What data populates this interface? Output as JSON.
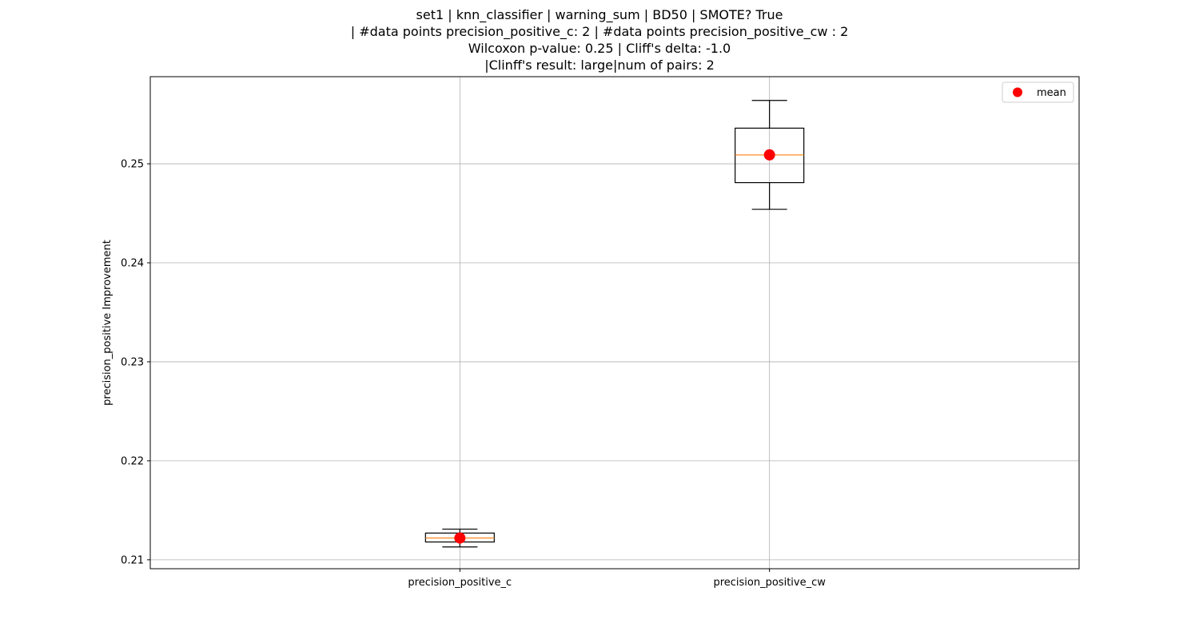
{
  "chart_data": {
    "type": "box",
    "title_lines": [
      "set1 | knn_classifier | warning_sum | BD50 | SMOTE? True",
      "| #data points precision_positive_c: 2 | #data points precision_positive_cw : 2",
      "Wilcoxon p-value: 0.25 | Cliff's delta: -1.0",
      "|Clinff's result: large|num of pairs: 2"
    ],
    "xlabel": "",
    "ylabel": "precision_positive Improvement",
    "ylim": [
      0.2091,
      0.2588
    ],
    "yticks": [
      0.21,
      0.22,
      0.23,
      0.24,
      0.25
    ],
    "ytick_labels": [
      "0.21",
      "0.22",
      "0.23",
      "0.24",
      "0.25"
    ],
    "categories": [
      "precision_positive_c",
      "precision_positive_cw"
    ],
    "boxes": [
      {
        "whisker_low": 0.2113,
        "q1": 0.2118,
        "median": 0.2122,
        "q3": 0.2127,
        "whisker_high": 0.2131,
        "mean": 0.2122
      },
      {
        "whisker_low": 0.2454,
        "q1": 0.2481,
        "median": 0.2509,
        "q3": 0.2536,
        "whisker_high": 0.2564,
        "mean": 0.2509
      }
    ],
    "grid": true,
    "legend": {
      "position": "top-right",
      "entries": [
        {
          "label": "mean",
          "color": "#ff0000"
        }
      ]
    },
    "colors": {
      "box": "#000000",
      "median": "#ff7f0e",
      "mean": "#ff0000",
      "grid": "#b0b0b0"
    }
  }
}
